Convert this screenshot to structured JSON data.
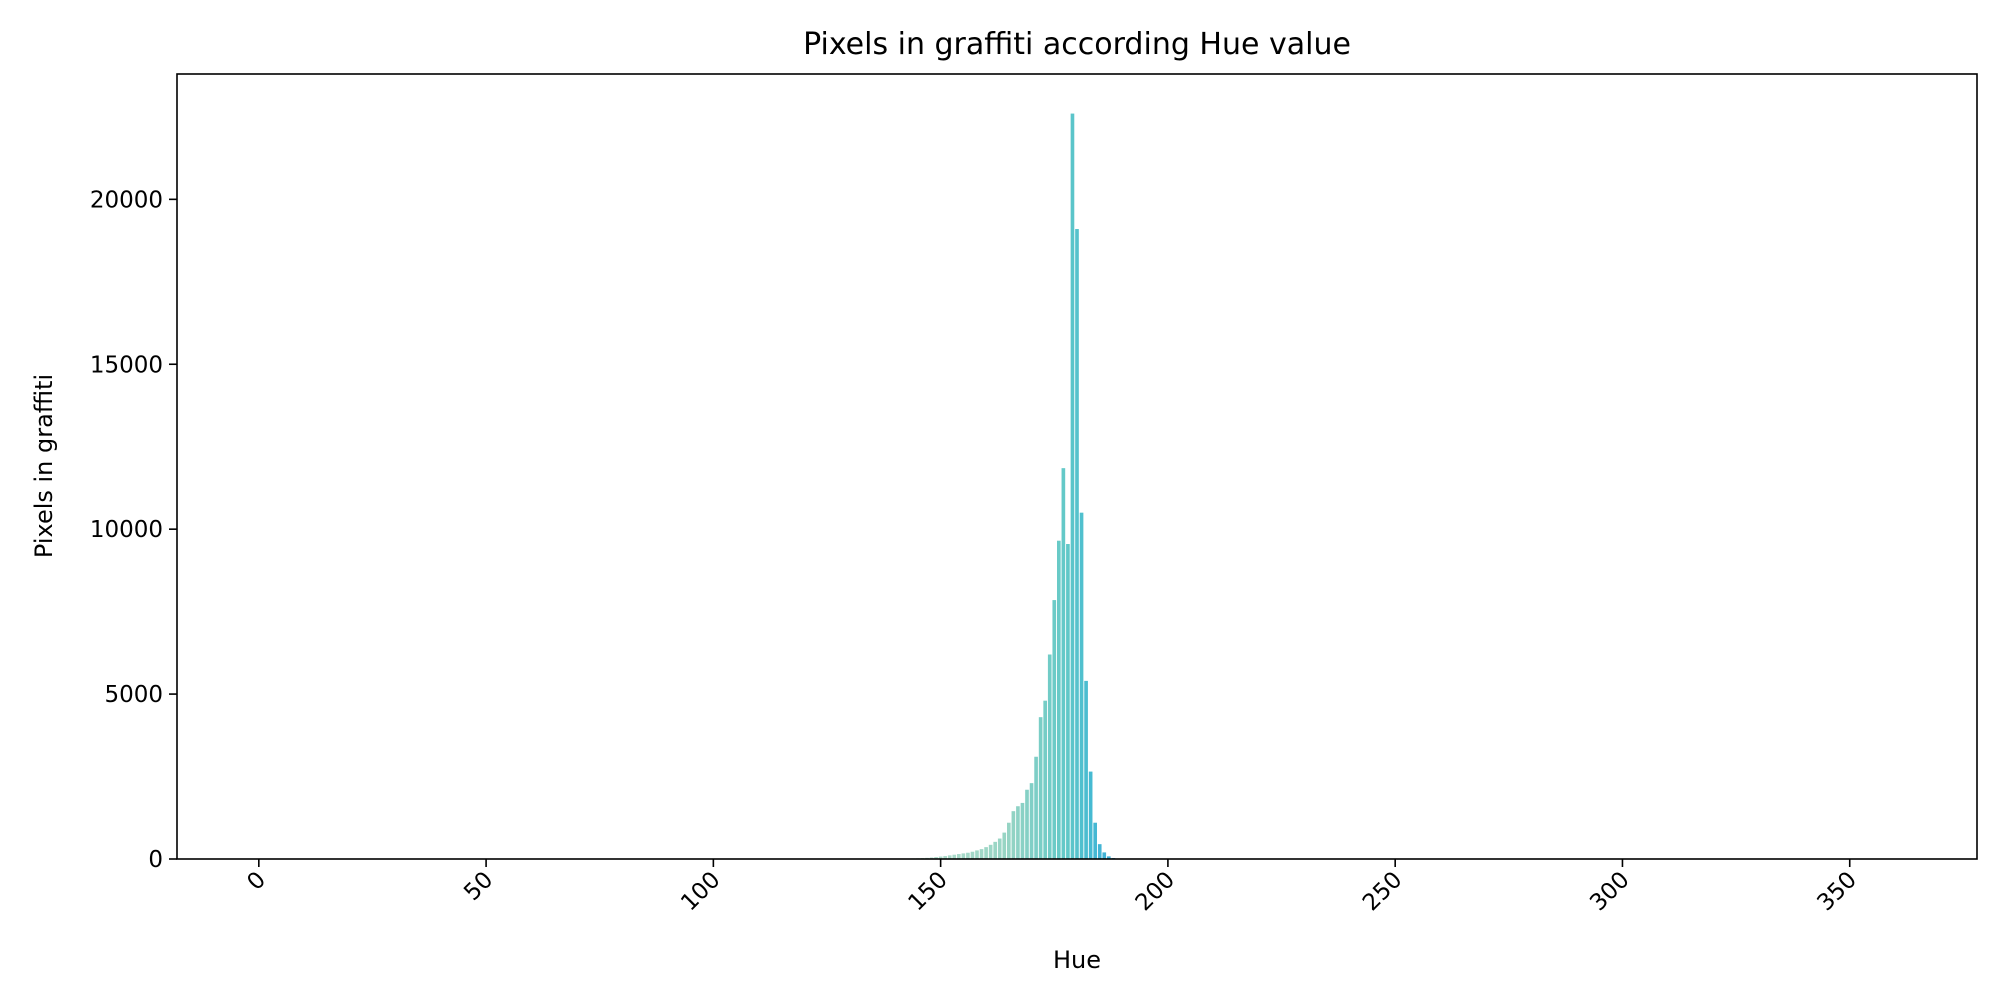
{
  "chart_data": {
    "type": "bar",
    "title": "Pixels in graffiti according Hue value",
    "xlabel": "Hue",
    "ylabel": "Pixels in graffiti",
    "xlim": [
      -18,
      378
    ],
    "ylim": [
      0,
      23800
    ],
    "xticks": [
      0,
      50,
      100,
      150,
      200,
      250,
      300,
      350
    ],
    "yticks": [
      0,
      5000,
      10000,
      15000,
      20000
    ],
    "grid": false,
    "x": [
      140,
      141,
      142,
      143,
      144,
      145,
      146,
      147,
      148,
      149,
      150,
      151,
      152,
      153,
      154,
      155,
      156,
      157,
      158,
      159,
      160,
      161,
      162,
      163,
      164,
      165,
      166,
      167,
      168,
      169,
      170,
      171,
      172,
      173,
      174,
      175,
      176,
      177,
      178,
      179,
      180,
      181,
      182,
      183,
      184,
      185,
      186,
      187,
      188,
      189,
      190
    ],
    "values": [
      5,
      8,
      10,
      14,
      18,
      22,
      28,
      35,
      45,
      60,
      75,
      90,
      110,
      130,
      150,
      170,
      190,
      220,
      260,
      300,
      360,
      430,
      520,
      620,
      800,
      1100,
      1450,
      1600,
      1700,
      2100,
      2300,
      3100,
      4300,
      4800,
      6200,
      7850,
      9650,
      11850,
      9550,
      22600,
      19100,
      10500,
      5400,
      2650,
      1100,
      450,
      200,
      80,
      30,
      10,
      5
    ],
    "colors_note": "gradient from pale mint (#b5dcc8) at low hue to teal (#5cc8c8) and blue (#4ab4d8) at high hue"
  }
}
